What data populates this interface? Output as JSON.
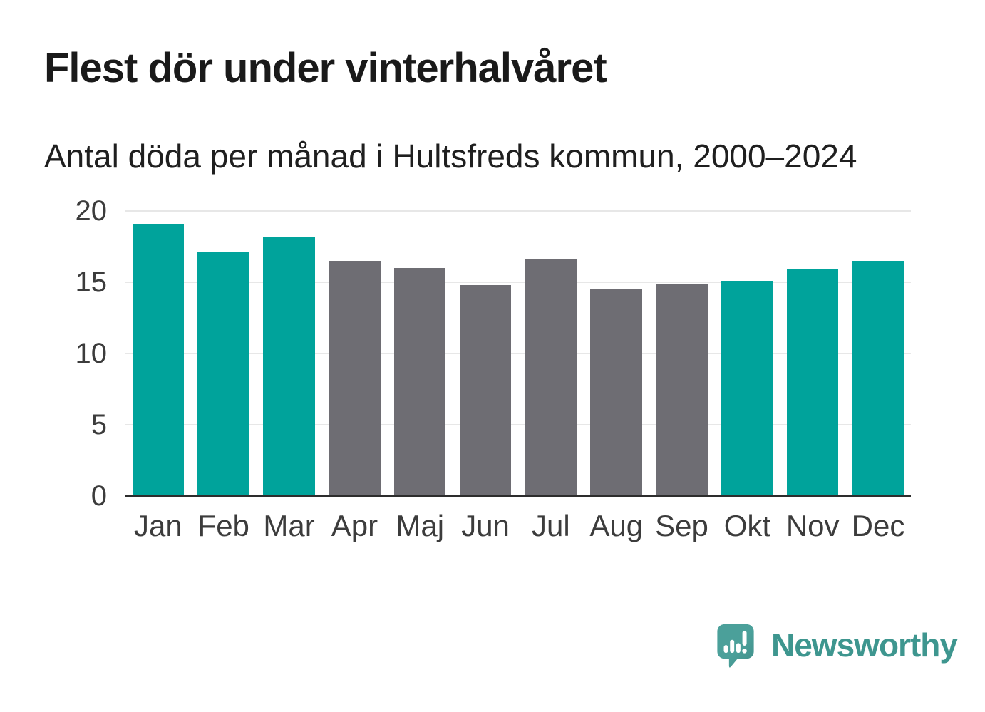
{
  "header": {
    "title": "Flest dör under vinterhalvåret",
    "subtitle": "Antal döda per månad i Hultsfreds kommun, 2000–2024"
  },
  "chart_data": {
    "type": "bar",
    "title": "Flest dör under vinterhalvåret",
    "subtitle": "Antal döda per månad i Hultsfreds kommun, 2000–2024",
    "categories": [
      "Jan",
      "Feb",
      "Mar",
      "Apr",
      "Maj",
      "Jun",
      "Jul",
      "Aug",
      "Sep",
      "Okt",
      "Nov",
      "Dec"
    ],
    "values": [
      19.1,
      17.1,
      18.2,
      16.5,
      16.0,
      14.8,
      16.6,
      14.5,
      14.9,
      15.1,
      15.9,
      16.5
    ],
    "groups": [
      "winter",
      "winter",
      "winter",
      "summer",
      "summer",
      "summer",
      "summer",
      "summer",
      "summer",
      "winter",
      "winter",
      "winter"
    ],
    "group_colors": {
      "winter": "#00a39b",
      "summer": "#6e6d73"
    },
    "xlabel": "",
    "ylabel": "",
    "ylim": [
      0,
      20
    ],
    "yticks": [
      20,
      15,
      10,
      5,
      0
    ],
    "grid": "horizontal-light",
    "legend": "none",
    "baseline_color": "#2d2d2d",
    "gridline_color": "#e7e7e7"
  },
  "footer": {
    "brand": "Newsworthy",
    "logo_icon": "newsworthy-speech-bubble-bar-chart-icon",
    "logo_bubble_color": "#4ba09a",
    "logo_bubble_shade_color": "#3f8e88",
    "logo_text_color": "#3e968f"
  }
}
